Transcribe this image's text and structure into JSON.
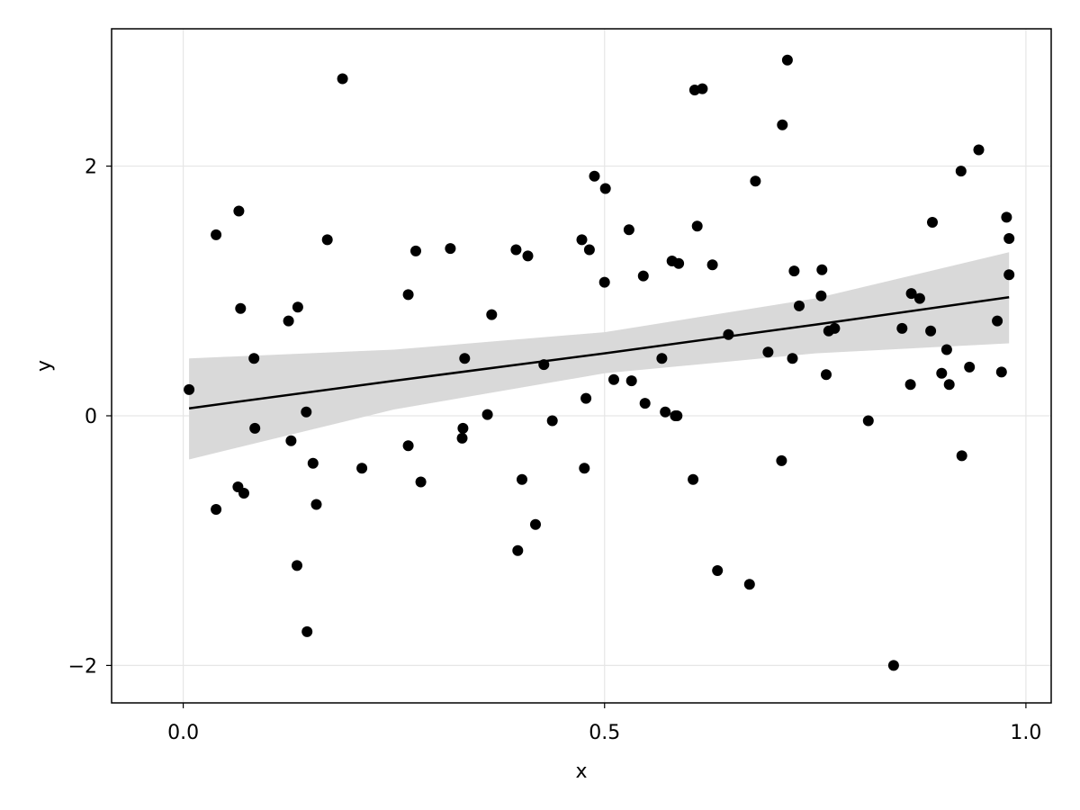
{
  "chart_data": {
    "type": "scatter",
    "title": "",
    "xlabel": "x",
    "ylabel": "y",
    "xlim": [
      -0.085,
      1.03
    ],
    "ylim": [
      -2.3,
      3.1
    ],
    "x_ticks": [
      0.0,
      0.5,
      1.0
    ],
    "x_tick_labels": [
      "0.0",
      "0.5",
      "1.0"
    ],
    "y_ticks": [
      -2,
      0,
      2
    ],
    "y_tick_labels": [
      "−2",
      "0",
      "2"
    ],
    "grid": true,
    "legend": "none",
    "colors": {
      "points": "#000000",
      "line": "#000000",
      "band": "#d9d9d9",
      "grid": "#e6e6e6"
    },
    "fit": {
      "x": [
        0.007,
        0.25,
        0.5,
        0.75,
        0.98
      ],
      "y": [
        0.06,
        0.28,
        0.5,
        0.73,
        0.95
      ],
      "lower": [
        -0.35,
        0.05,
        0.34,
        0.5,
        0.58
      ],
      "upper": [
        0.46,
        0.53,
        0.67,
        0.94,
        1.31
      ]
    },
    "series": [
      {
        "x": [
          0.007,
          0.039,
          0.039,
          0.065,
          0.066,
          0.068,
          0.072,
          0.084,
          0.085,
          0.125,
          0.128,
          0.135,
          0.136,
          0.146,
          0.147,
          0.154,
          0.158,
          0.171,
          0.189,
          0.212,
          0.267,
          0.267,
          0.276,
          0.282,
          0.317,
          0.331,
          0.332,
          0.334,
          0.361,
          0.366,
          0.395,
          0.397,
          0.402,
          0.409,
          0.418,
          0.428,
          0.438,
          0.473,
          0.476,
          0.478,
          0.482,
          0.488,
          0.5,
          0.501,
          0.511,
          0.529,
          0.532,
          0.546,
          0.548,
          0.568,
          0.572,
          0.58,
          0.584,
          0.586,
          0.588,
          0.605,
          0.607,
          0.61,
          0.616,
          0.628,
          0.634,
          0.647,
          0.672,
          0.679,
          0.694,
          0.71,
          0.711,
          0.717,
          0.723,
          0.725,
          0.731,
          0.757,
          0.758,
          0.763,
          0.766,
          0.773,
          0.813,
          0.843,
          0.853,
          0.863,
          0.864,
          0.874,
          0.887,
          0.889,
          0.9,
          0.906,
          0.909,
          0.923,
          0.924,
          0.933,
          0.944,
          0.966,
          0.971,
          0.977,
          0.98,
          0.98
        ],
        "y": [
          0.21,
          1.45,
          -0.75,
          -0.57,
          1.64,
          0.86,
          -0.62,
          0.46,
          -0.1,
          0.76,
          -0.2,
          -1.2,
          0.87,
          0.03,
          -1.73,
          -0.38,
          -0.71,
          1.41,
          2.7,
          -0.42,
          -0.24,
          0.97,
          1.32,
          -0.53,
          1.34,
          -0.18,
          -0.1,
          0.46,
          0.01,
          0.81,
          1.33,
          -1.08,
          -0.51,
          1.28,
          -0.87,
          0.41,
          -0.04,
          1.41,
          -0.42,
          0.14,
          1.33,
          1.92,
          1.07,
          1.82,
          0.29,
          1.49,
          0.28,
          1.12,
          0.1,
          0.46,
          0.03,
          1.24,
          0.0,
          0.0,
          1.22,
          -0.51,
          2.61,
          1.52,
          2.62,
          1.21,
          -1.24,
          0.65,
          -1.35,
          1.88,
          0.51,
          -0.36,
          2.33,
          2.85,
          0.46,
          1.16,
          0.88,
          0.96,
          1.17,
          0.33,
          0.68,
          0.7,
          -0.04,
          -2.0,
          0.7,
          0.25,
          0.98,
          0.94,
          0.68,
          1.55,
          0.34,
          0.53,
          0.25,
          1.96,
          -0.32,
          0.39,
          2.13,
          0.76,
          0.35,
          1.59,
          1.13,
          1.42
        ]
      }
    ]
  }
}
